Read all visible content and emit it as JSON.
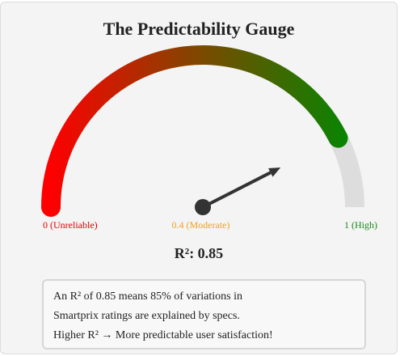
{
  "title": "The Predictability Gauge",
  "gauge": {
    "value": 0.85,
    "min": 0,
    "max": 1,
    "value_label": "R²: 0.85",
    "labels": {
      "left": "0 (Unreliable)",
      "mid": "0.4 (Moderate)",
      "right": "1 (High)"
    },
    "colors": {
      "low": "#ff0000",
      "mid": "#7a4a00",
      "high": "#008800",
      "track": "#dddddd",
      "needle": "#333333"
    }
  },
  "explanation": {
    "line1": "An R² of 0.85 means 85% of variations in",
    "line2": "Smartprix ratings are explained by specs.",
    "line3": "Higher R² → More predictable user satisfaction!"
  }
}
